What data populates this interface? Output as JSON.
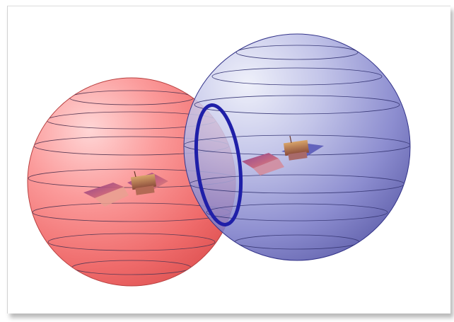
{
  "figure": {
    "colors": {
      "red_sphere": "#f16a6a",
      "blue_sphere": "#6d6dc2",
      "intersection_ring": "#1f1fa8",
      "latitude_lines": "#4a3f6e",
      "frame_border": "#d2d2d2"
    },
    "spheres": [
      {
        "name": "red-coverage-sphere",
        "icon": "satellite-icon",
        "latitude_lines": 7
      },
      {
        "name": "blue-coverage-sphere",
        "icon": "satellite-icon",
        "latitude_lines": 7
      }
    ],
    "intersection": {
      "shape": "ring"
    }
  }
}
